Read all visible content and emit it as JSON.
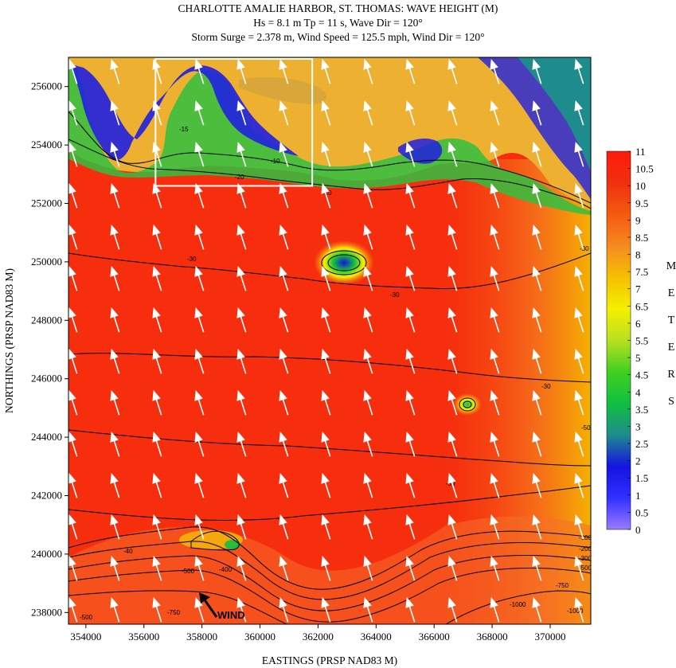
{
  "chart_data": {
    "type": "heatmap",
    "title": "CHARLOTTE AMALIE HARBOR, ST. THOMAS: WAVE HEIGHT (M)",
    "subtitle_lines": [
      "Hs = 8.1 m Tp = 11 s, Wave Dir = 120°",
      "Storm Surge = 2.378 m, Wind Speed = 125.5 mph, Wind Dir = 120°"
    ],
    "xlabel": "EASTINGS (PRSP NAD83 M)",
    "ylabel": "NORTHINGS (PRSP NAD83 M)",
    "xlim": [
      353400,
      371400
    ],
    "ylim": [
      237600,
      257000
    ],
    "x_ticks": [
      354000,
      356000,
      358000,
      360000,
      362000,
      364000,
      366000,
      368000,
      370000
    ],
    "y_ticks": [
      238000,
      240000,
      242000,
      244000,
      246000,
      248000,
      250000,
      252000,
      254000,
      256000
    ],
    "colorbar": {
      "label_letters": [
        "M",
        "E",
        "T",
        "E",
        "R",
        "S"
      ],
      "range": [
        0,
        11
      ],
      "tick_labels": [
        "11",
        "10.5",
        "10",
        "9.5",
        "9",
        "8.5",
        "8",
        "7.5",
        "7",
        "6.5",
        "6",
        "5.5",
        "5",
        "4.5",
        "4",
        "3.5",
        "3",
        "2.5",
        "2",
        "1.5",
        "1",
        "0.5",
        "0"
      ],
      "colors": [
        "#9a7cff",
        "#3030ff",
        "#1414e0",
        "#1e8c8c",
        "#10c040",
        "#40d020",
        "#b8e020",
        "#f4f000",
        "#f5c000",
        "#f58a20",
        "#f55a10",
        "#f03010",
        "#ff1a0a"
      ]
    },
    "contour_labels": [
      "-10",
      "-15",
      "-20",
      "-30",
      "-40",
      "-50",
      "-100",
      "-200",
      "-300",
      "-400",
      "-500",
      "-750",
      "-1000"
    ],
    "wind_label": "WIND",
    "wind_direction_deg": 120,
    "wave_direction_deg": 120,
    "study_area_box": {
      "x": [
        356400,
        361800
      ],
      "y": [
        252600,
        257000
      ]
    }
  }
}
